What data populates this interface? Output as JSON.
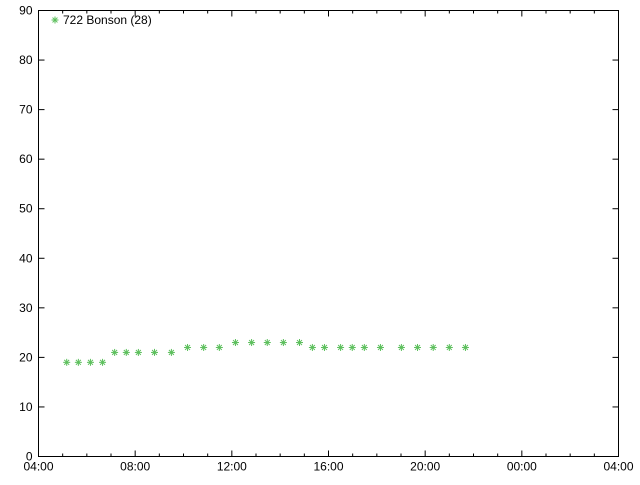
{
  "chart_data": {
    "type": "scatter",
    "title": "",
    "xlabel": "",
    "ylabel": "",
    "xlim": [
      "04:00",
      "04:00 (+1 day)"
    ],
    "ylim": [
      0,
      90
    ],
    "x_ticks": [
      "04:00",
      "08:00",
      "12:00",
      "16:00",
      "20:00",
      "00:00",
      "04:00"
    ],
    "y_ticks": [
      0,
      10,
      20,
      30,
      40,
      50,
      60,
      70,
      80,
      90
    ],
    "grid": false,
    "legend_position": "top-left",
    "series": [
      {
        "name": "722 Bonson (28)",
        "color": "#5cbf5c",
        "marker": "asterisk",
        "x": [
          "05:10",
          "05:39",
          "06:09",
          "06:39",
          "07:09",
          "07:38",
          "08:08",
          "08:48",
          "09:30",
          "10:10",
          "10:50",
          "11:29",
          "12:09",
          "12:49",
          "13:28",
          "14:08",
          "14:48",
          "15:20",
          "15:50",
          "16:30",
          "16:59",
          "17:29",
          "18:09",
          "19:01",
          "19:41",
          "20:20",
          "21:00",
          "21:40"
        ],
        "y": [
          19,
          19,
          19,
          19,
          21,
          21,
          21,
          21,
          21,
          22,
          22,
          22,
          23,
          23,
          23,
          23,
          23,
          22,
          22,
          22,
          22,
          22,
          22,
          22,
          22,
          22,
          22,
          22
        ]
      }
    ]
  }
}
